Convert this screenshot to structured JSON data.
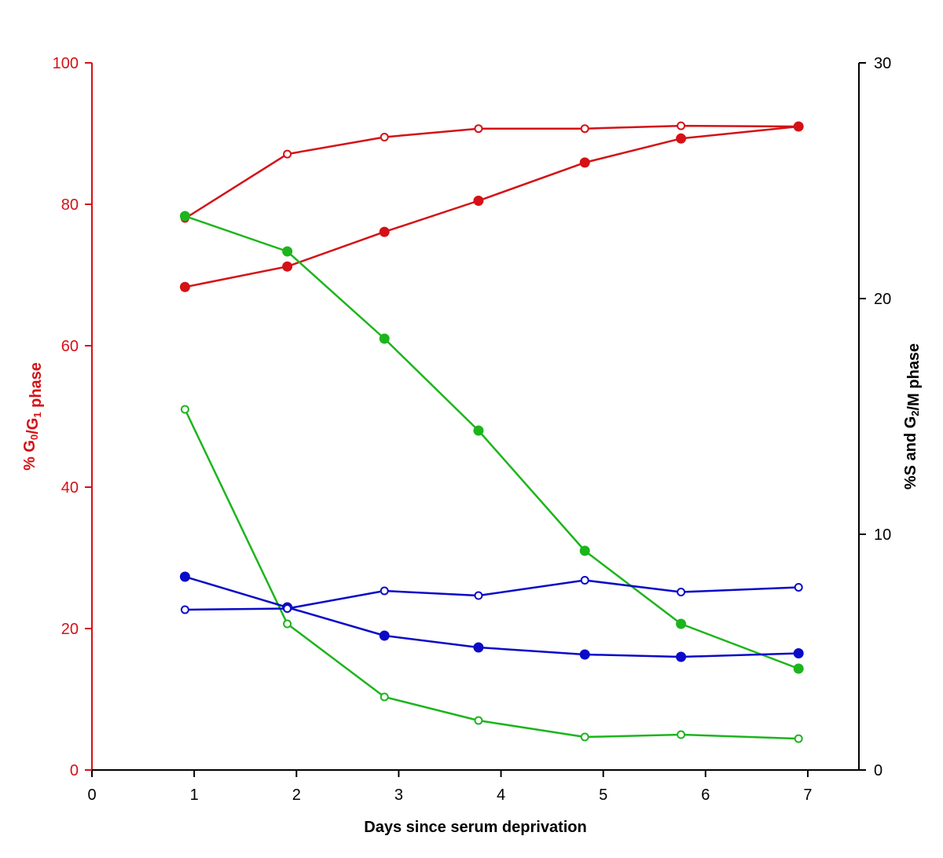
{
  "chart_data": {
    "type": "line",
    "title": "",
    "xlabel": "Days since serum deprivation",
    "ylabel_left": "% G0/G1 phase",
    "ylabel_right": "%S and G2/M phase",
    "xlim": [
      0,
      7.5
    ],
    "ylim_left": [
      0,
      100
    ],
    "ylim_right": [
      0,
      30
    ],
    "x_ticks": [
      0,
      1,
      2,
      3,
      4,
      5,
      6,
      7
    ],
    "y_left_ticks": [
      0,
      20,
      40,
      60,
      80,
      100
    ],
    "y_right_ticks": [
      0,
      10,
      20,
      30
    ],
    "grid": false,
    "legend": "none",
    "colors": {
      "left_axis": "#d41116",
      "right_axis": "#000000",
      "red": "#d41116",
      "green": "#1cb51c",
      "blue": "#0a0ac8"
    },
    "series": [
      {
        "axis": "left",
        "color": "red",
        "marker": "open",
        "x": [
          0.91,
          1.91,
          2.86,
          3.78,
          4.82,
          5.76,
          6.91
        ],
        "values": [
          78.0,
          87.1,
          89.5,
          90.7,
          90.7,
          91.1,
          91.0
        ]
      },
      {
        "axis": "left",
        "color": "red",
        "marker": "filled",
        "x": [
          0.91,
          1.91,
          2.86,
          3.78,
          4.82,
          5.76,
          6.91
        ],
        "values": [
          68.3,
          71.2,
          76.1,
          80.5,
          85.9,
          89.3,
          91.0
        ]
      },
      {
        "axis": "right",
        "color": "green",
        "marker": "filled",
        "x": [
          0.91,
          1.91,
          2.86,
          3.78,
          4.82,
          5.76,
          6.91
        ],
        "values": [
          23.5,
          22.0,
          18.3,
          14.4,
          9.3,
          6.2,
          4.3
        ]
      },
      {
        "axis": "right",
        "color": "green",
        "marker": "open",
        "x": [
          0.91,
          1.91,
          2.86,
          3.78,
          4.82,
          5.76,
          6.91
        ],
        "values": [
          15.3,
          6.2,
          3.1,
          2.1,
          1.4,
          1.5,
          1.33
        ]
      },
      {
        "axis": "right",
        "color": "blue",
        "marker": "filled",
        "x": [
          0.91,
          1.91,
          2.86,
          3.78,
          4.82,
          5.76,
          6.91
        ],
        "values": [
          8.2,
          6.9,
          5.7,
          5.2,
          4.9,
          4.8,
          4.95
        ]
      },
      {
        "axis": "right",
        "color": "blue",
        "marker": "open",
        "x": [
          0.91,
          1.91,
          2.86,
          3.78,
          4.82,
          5.76,
          6.91
        ],
        "values": [
          6.8,
          6.85,
          7.6,
          7.4,
          8.05,
          7.55,
          7.75
        ]
      }
    ]
  }
}
